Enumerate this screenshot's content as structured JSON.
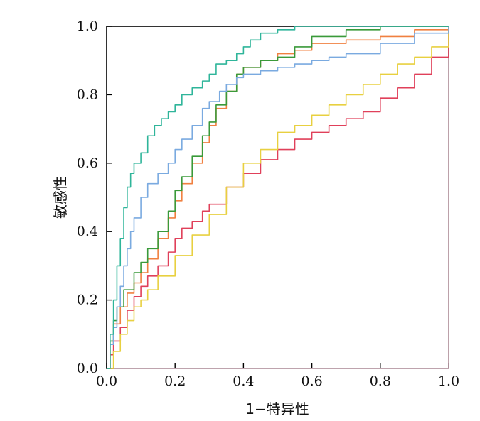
{
  "chart_data": {
    "type": "line",
    "title": "",
    "xlabel": "1−特异性",
    "ylabel": "敏感性",
    "xlim": [
      0.0,
      1.0
    ],
    "ylim": [
      0.0,
      1.0
    ],
    "xticks": [
      "0.0",
      "0.2",
      "0.4",
      "0.6",
      "0.8",
      "1.0"
    ],
    "yticks": [
      "0.0",
      "0.2",
      "0.4",
      "0.6",
      "0.8",
      "1.0"
    ],
    "grid": false,
    "legend": "none",
    "series": [
      {
        "color": "#2fb59a",
        "x": [
          0,
          0.01,
          0.02,
          0.03,
          0.04,
          0.05,
          0.06,
          0.07,
          0.08,
          0.1,
          0.12,
          0.14,
          0.16,
          0.18,
          0.2,
          0.22,
          0.25,
          0.28,
          0.3,
          0.32,
          0.35,
          0.38,
          0.4,
          0.42,
          0.45,
          0.5,
          0.55,
          0.6,
          0.7,
          0.8,
          0.9,
          1.0
        ],
        "y": [
          0,
          0.1,
          0.2,
          0.3,
          0.38,
          0.47,
          0.53,
          0.57,
          0.6,
          0.63,
          0.68,
          0.71,
          0.73,
          0.75,
          0.77,
          0.8,
          0.82,
          0.84,
          0.86,
          0.89,
          0.9,
          0.92,
          0.94,
          0.96,
          0.98,
          0.99,
          1.0,
          1.0,
          1.0,
          1.0,
          1.0,
          1.0
        ]
      },
      {
        "color": "#7aaae0",
        "x": [
          0,
          0.01,
          0.02,
          0.03,
          0.04,
          0.05,
          0.06,
          0.07,
          0.08,
          0.1,
          0.12,
          0.15,
          0.18,
          0.2,
          0.22,
          0.25,
          0.28,
          0.3,
          0.33,
          0.35,
          0.38,
          0.4,
          0.45,
          0.5,
          0.55,
          0.6,
          0.65,
          0.7,
          0.8,
          0.9,
          1.0
        ],
        "y": [
          0,
          0.07,
          0.12,
          0.18,
          0.24,
          0.3,
          0.35,
          0.4,
          0.44,
          0.5,
          0.54,
          0.57,
          0.6,
          0.64,
          0.67,
          0.71,
          0.76,
          0.78,
          0.81,
          0.83,
          0.85,
          0.86,
          0.87,
          0.88,
          0.89,
          0.9,
          0.91,
          0.92,
          0.95,
          0.98,
          1.0
        ]
      },
      {
        "color": "#3a9a3a",
        "x": [
          0,
          0.01,
          0.02,
          0.03,
          0.05,
          0.08,
          0.1,
          0.12,
          0.15,
          0.18,
          0.2,
          0.22,
          0.25,
          0.28,
          0.3,
          0.32,
          0.35,
          0.38,
          0.4,
          0.45,
          0.5,
          0.55,
          0.6,
          0.7,
          0.8,
          0.9,
          1.0
        ],
        "y": [
          0,
          0.08,
          0.14,
          0.18,
          0.23,
          0.28,
          0.31,
          0.35,
          0.4,
          0.46,
          0.52,
          0.56,
          0.62,
          0.68,
          0.72,
          0.77,
          0.81,
          0.86,
          0.88,
          0.9,
          0.91,
          0.94,
          0.97,
          0.99,
          1.0,
          1.0,
          1.0
        ]
      },
      {
        "color": "#f08040",
        "x": [
          0,
          0.01,
          0.02,
          0.04,
          0.06,
          0.08,
          0.1,
          0.12,
          0.15,
          0.18,
          0.2,
          0.22,
          0.25,
          0.28,
          0.3,
          0.32,
          0.35,
          0.38,
          0.4,
          0.45,
          0.5,
          0.55,
          0.6,
          0.7,
          0.8,
          0.9,
          1.0
        ],
        "y": [
          0,
          0.07,
          0.13,
          0.18,
          0.22,
          0.25,
          0.28,
          0.32,
          0.38,
          0.44,
          0.49,
          0.54,
          0.6,
          0.66,
          0.71,
          0.76,
          0.81,
          0.86,
          0.88,
          0.9,
          0.92,
          0.93,
          0.95,
          0.96,
          0.97,
          0.99,
          1.0
        ]
      },
      {
        "color": "#e8d040",
        "x": [
          0,
          0.02,
          0.04,
          0.06,
          0.08,
          0.1,
          0.12,
          0.15,
          0.2,
          0.25,
          0.3,
          0.35,
          0.4,
          0.45,
          0.5,
          0.55,
          0.6,
          0.65,
          0.7,
          0.75,
          0.8,
          0.85,
          0.9,
          0.95,
          1.0
        ],
        "y": [
          0,
          0.05,
          0.1,
          0.14,
          0.18,
          0.2,
          0.23,
          0.27,
          0.33,
          0.39,
          0.45,
          0.53,
          0.6,
          0.64,
          0.69,
          0.71,
          0.74,
          0.77,
          0.8,
          0.83,
          0.86,
          0.89,
          0.91,
          0.94,
          1.0
        ]
      },
      {
        "color": "#e0405a",
        "x": [
          0,
          0.01,
          0.02,
          0.04,
          0.06,
          0.08,
          0.1,
          0.12,
          0.15,
          0.18,
          0.2,
          0.22,
          0.25,
          0.28,
          0.3,
          0.35,
          0.4,
          0.45,
          0.5,
          0.55,
          0.6,
          0.65,
          0.7,
          0.75,
          0.8,
          0.85,
          0.9,
          0.95,
          1.0
        ],
        "y": [
          0,
          0.04,
          0.08,
          0.12,
          0.17,
          0.21,
          0.24,
          0.27,
          0.3,
          0.34,
          0.38,
          0.41,
          0.43,
          0.46,
          0.48,
          0.53,
          0.57,
          0.61,
          0.64,
          0.67,
          0.69,
          0.71,
          0.73,
          0.75,
          0.79,
          0.82,
          0.86,
          0.91,
          1.0
        ]
      },
      {
        "color": "#f4c8d8",
        "x": [
          0,
          1.0
        ],
        "y": [
          0,
          1.0
        ]
      }
    ]
  }
}
